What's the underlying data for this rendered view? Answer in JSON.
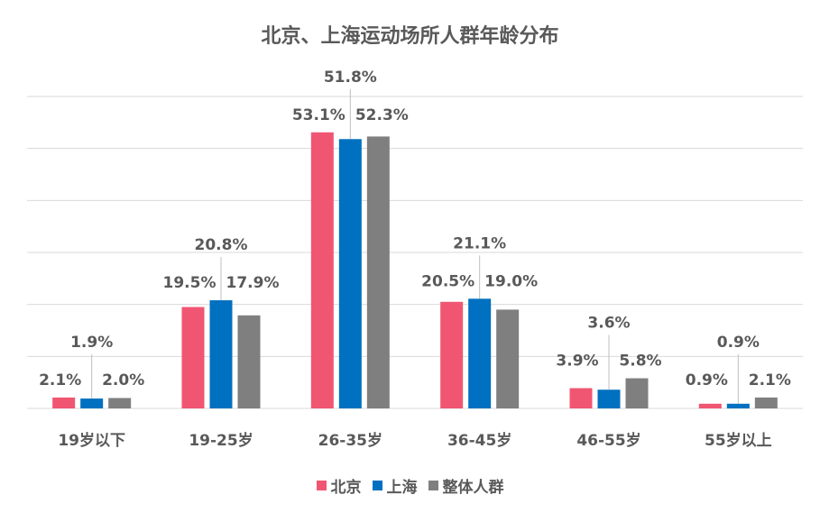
{
  "chart_data": {
    "type": "bar",
    "title": "北京、上海运动场所人群年龄分布",
    "categories": [
      "19岁以下",
      "19-25岁",
      "26-35岁",
      "36-45岁",
      "46-55岁",
      "55岁以上"
    ],
    "series": [
      {
        "name": "北京",
        "color": "#f05672",
        "values": [
          2.1,
          19.5,
          53.1,
          20.5,
          3.9,
          0.9
        ],
        "labels": [
          "2.1%",
          "19.5%",
          "53.1%",
          "20.5%",
          "3.9%",
          "0.9%"
        ]
      },
      {
        "name": "上海",
        "color": "#0070c0",
        "values": [
          1.9,
          20.8,
          51.8,
          21.1,
          3.6,
          0.9
        ],
        "labels": [
          "1.9%",
          "20.8%",
          "51.8%",
          "21.1%",
          "3.6%",
          "0.9%"
        ]
      },
      {
        "name": "整体人群",
        "color": "#7f7f7f",
        "values": [
          2.0,
          17.9,
          52.3,
          19.0,
          5.8,
          2.1
        ],
        "labels": [
          "2.0%",
          "17.9%",
          "52.3%",
          "19.0%",
          "5.8%",
          "2.1%"
        ]
      }
    ],
    "ylim": [
      0,
      60
    ],
    "grid": true,
    "legend": "bottom"
  }
}
